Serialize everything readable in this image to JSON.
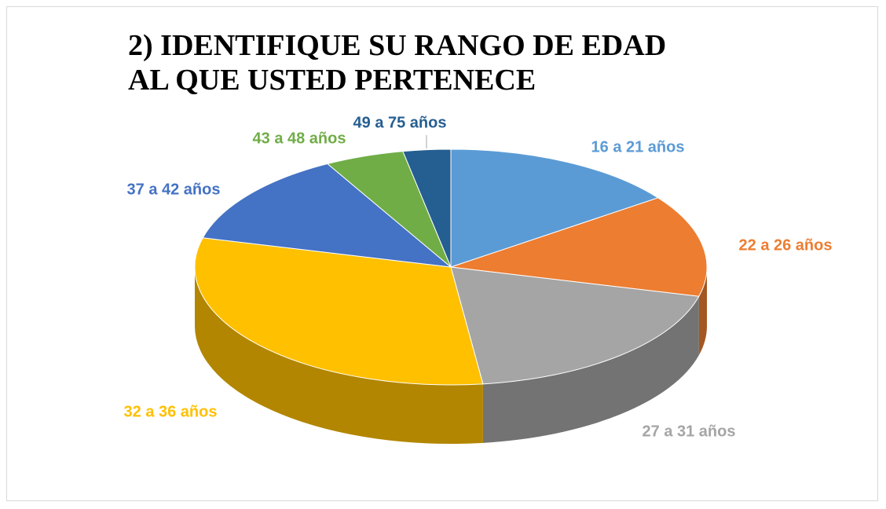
{
  "chart_data": {
    "type": "pie",
    "title": "2) IDENTIFIQUE SU RANGO DE EDAD AL QUE USTED PERTENECE",
    "categories": [
      "16 a 21 años",
      "22 a 26 años",
      "27 a 31 años",
      "32 a 36 años",
      "37 a 42 años",
      "43 a 48 años",
      "49 a 75 años"
    ],
    "values": [
      15,
      14,
      19,
      31,
      13,
      5,
      3
    ],
    "colors": [
      "#5b9bd5",
      "#ed7d31",
      "#a5a5a5",
      "#ffc000",
      "#4472c4",
      "#70ad47",
      "#255e91"
    ]
  }
}
